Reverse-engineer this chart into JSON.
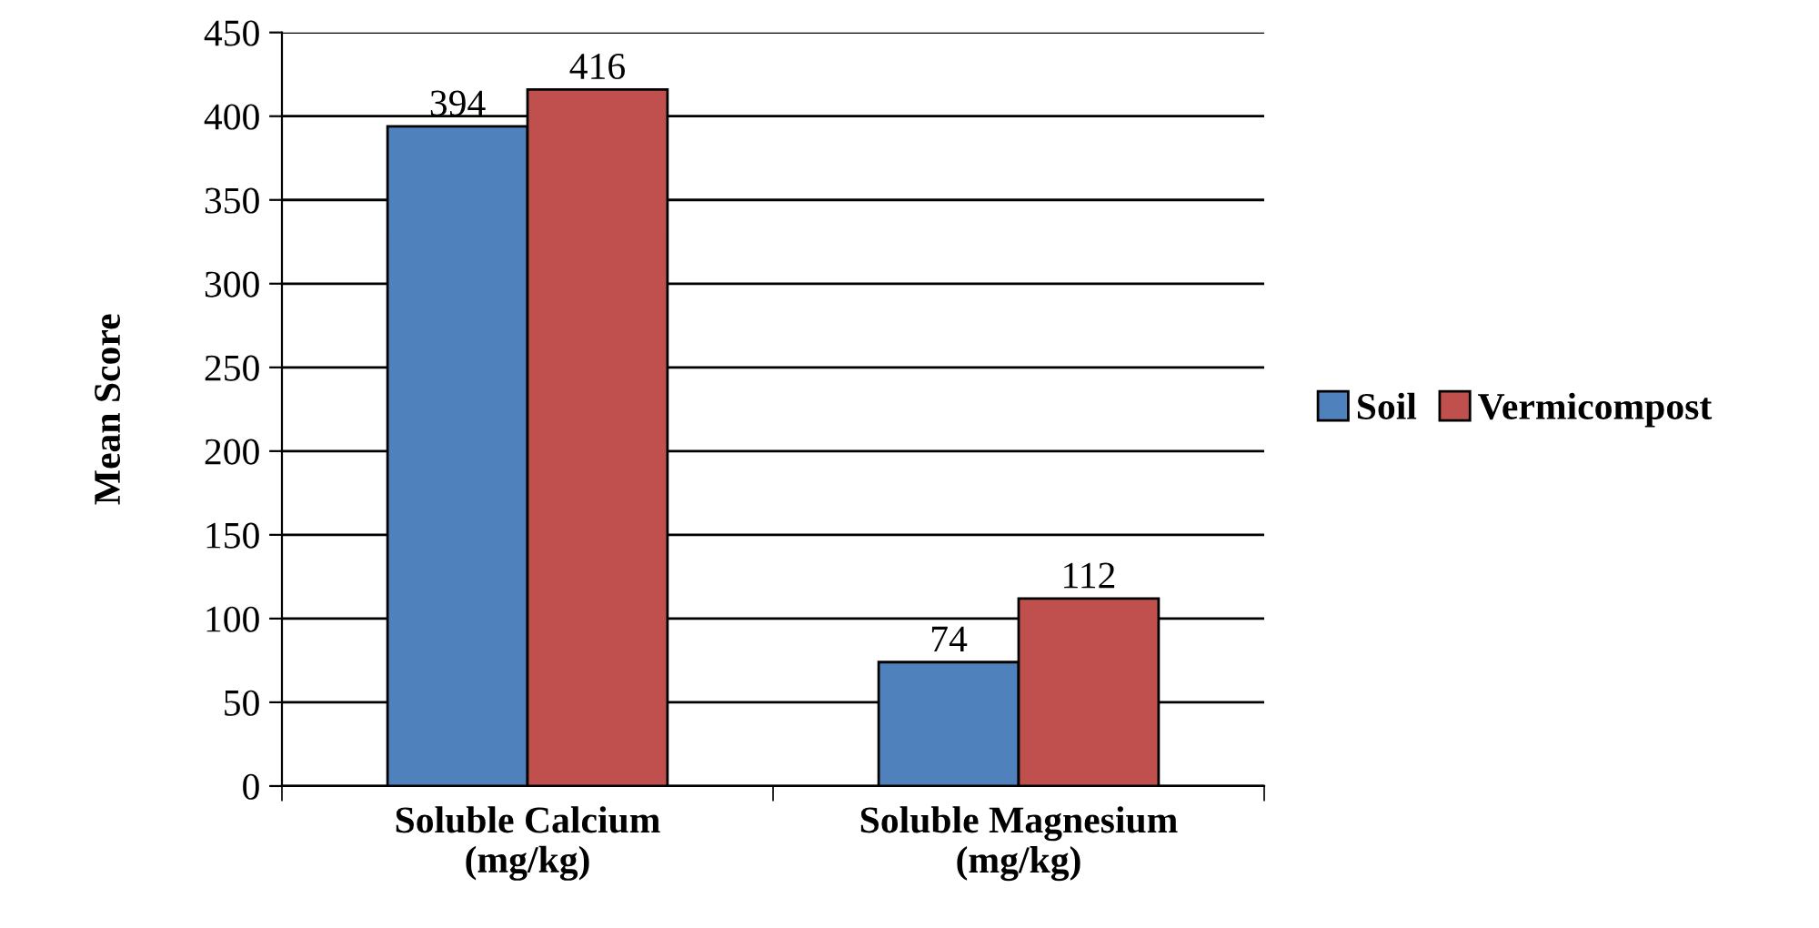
{
  "chart_data": {
    "type": "bar",
    "ylabel": "Mean Score",
    "categories": [
      "Soluble Calcium\n(mg/kg)",
      "Soluble Magnesium\n(mg/kg)"
    ],
    "series": [
      {
        "name": "Soil",
        "color": "#4f81bd",
        "values": [
          394,
          74
        ]
      },
      {
        "name": "Vermicompost",
        "color": "#c0504d",
        "values": [
          416,
          112
        ]
      }
    ],
    "ylim": [
      0,
      450
    ],
    "yticks": [
      0,
      50,
      100,
      150,
      200,
      250,
      300,
      350,
      400,
      450
    ],
    "grid": "y",
    "legend": "right",
    "data_labels": true
  }
}
